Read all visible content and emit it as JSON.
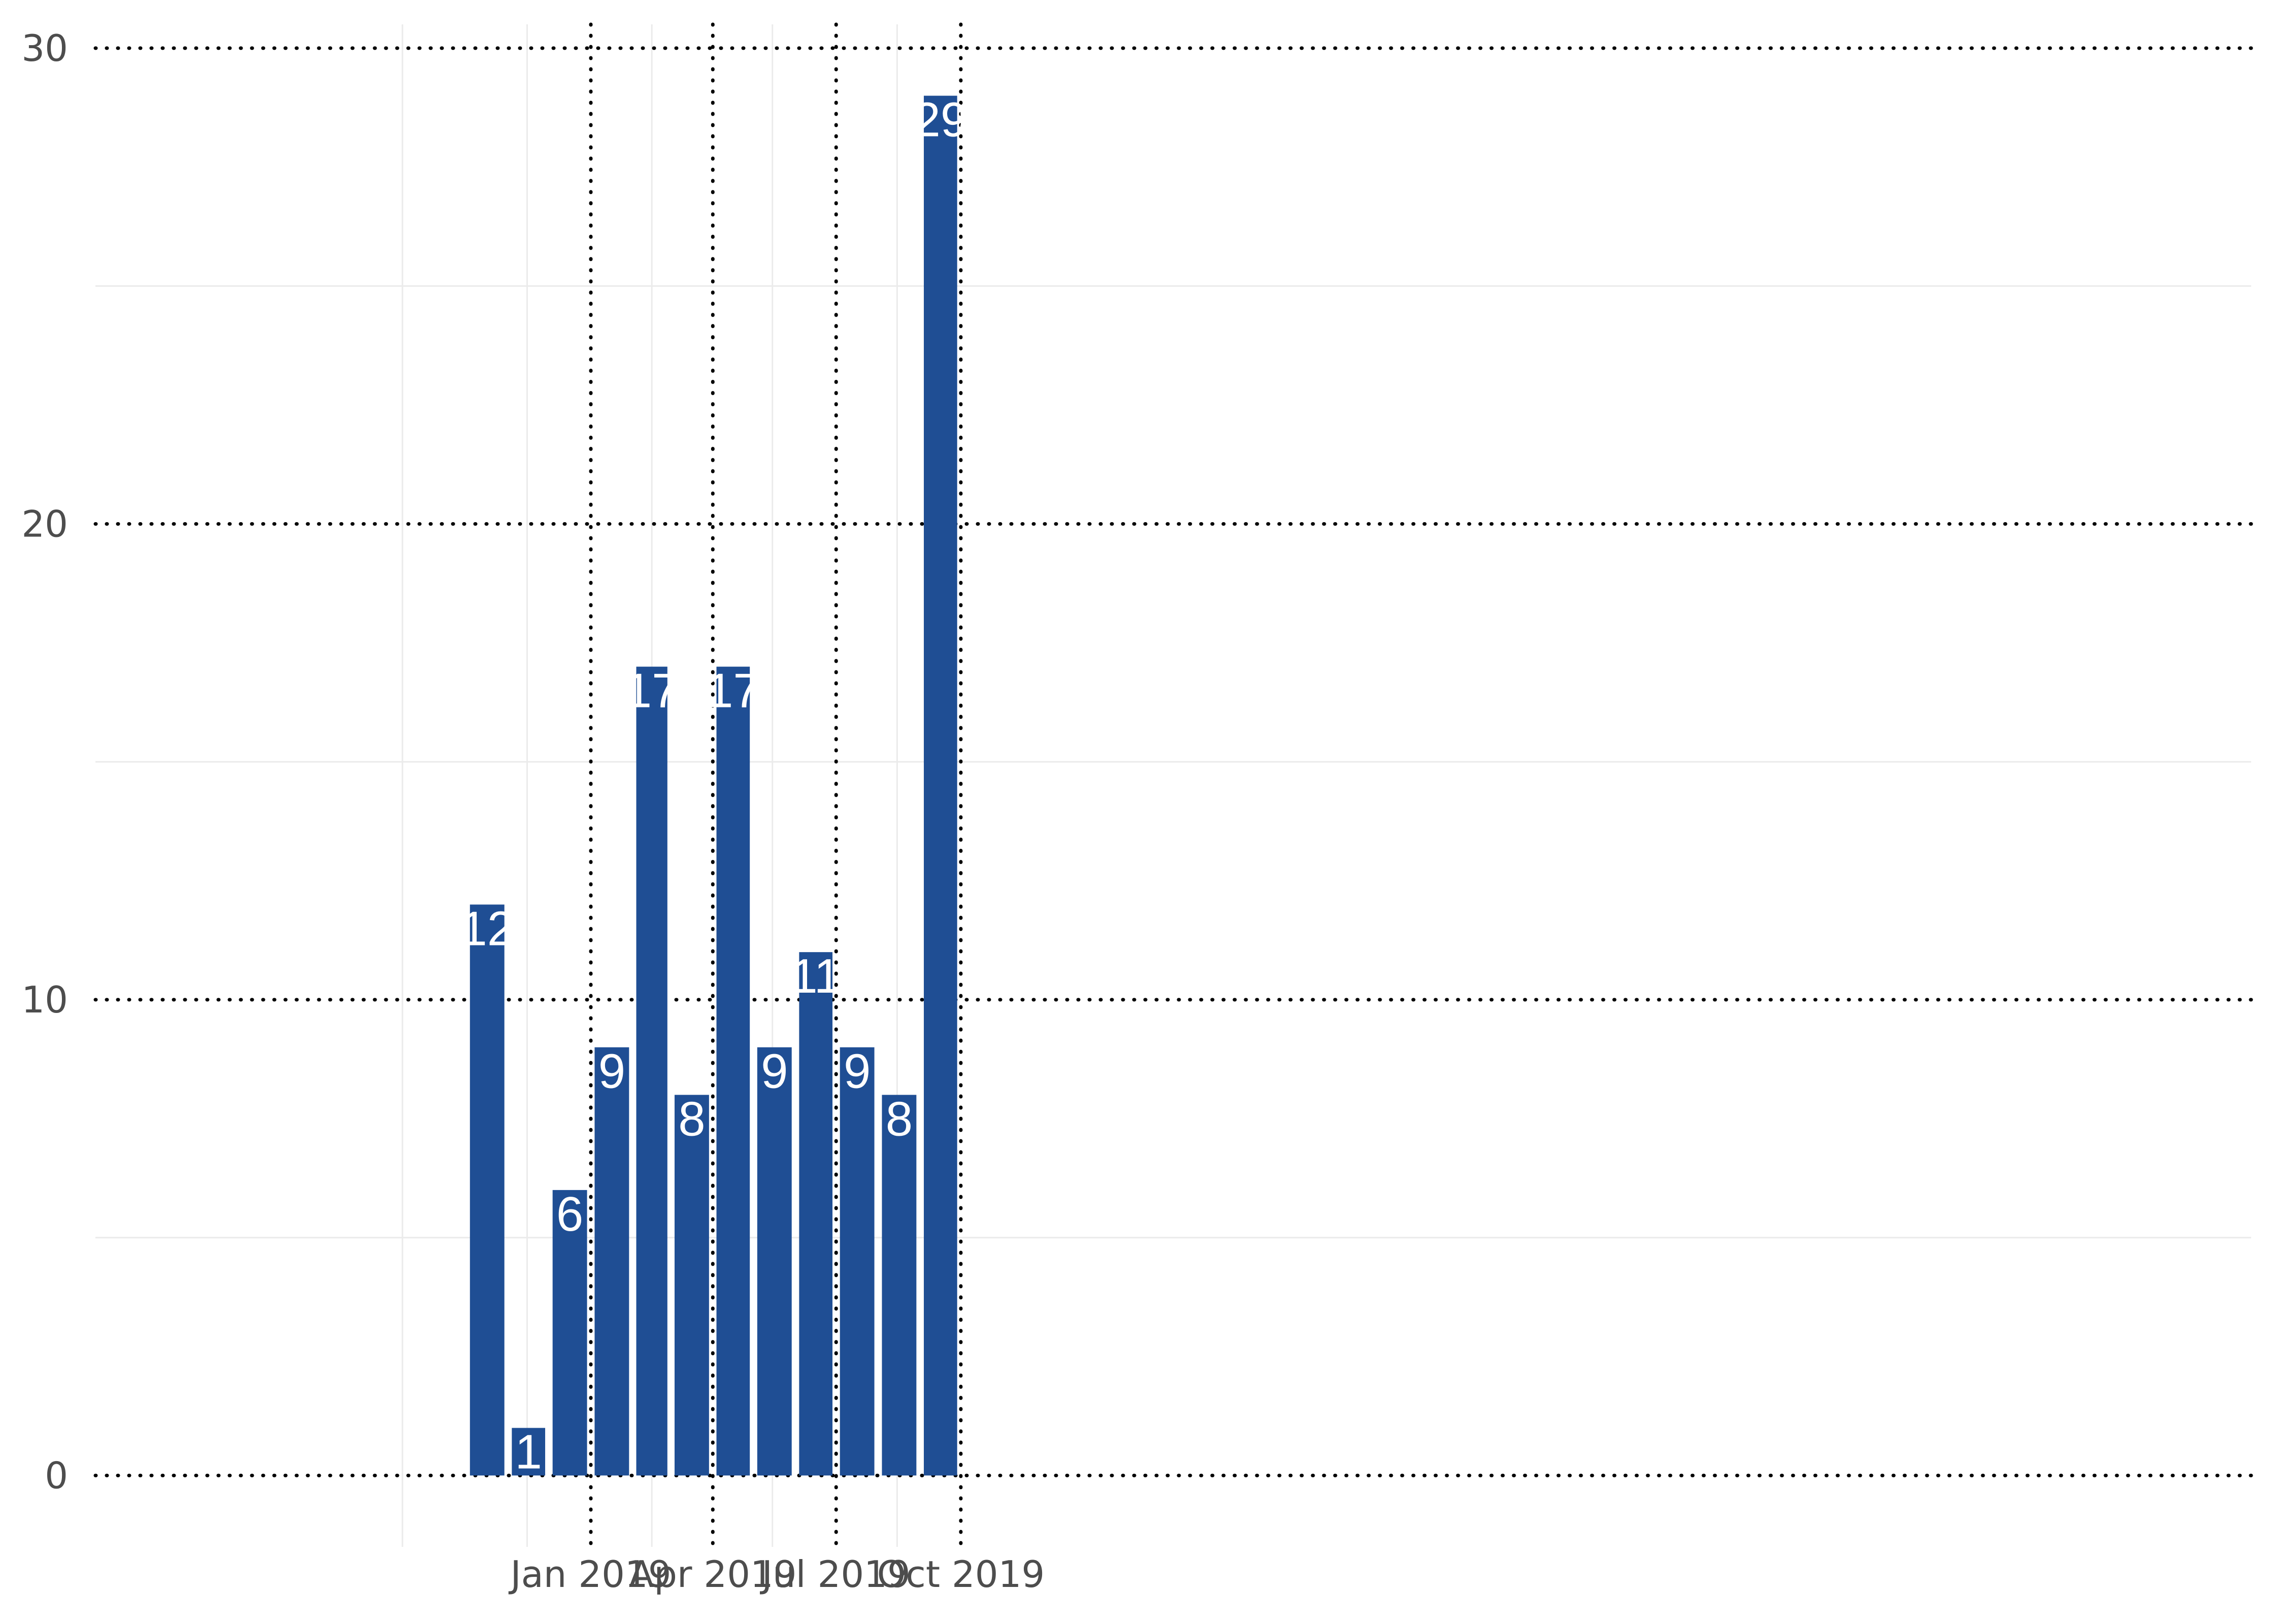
{
  "chart_data": {
    "type": "bar",
    "title": "",
    "xlabel": "",
    "ylabel": "",
    "x_axis_type": "date",
    "categories": [
      "2018-10",
      "2018-11",
      "2018-12",
      "2019-01",
      "2019-02",
      "2019-03",
      "2019-04",
      "2019-05",
      "2019-06",
      "2019-07",
      "2019-08",
      "2019-09",
      "2019-10"
    ],
    "bars": [
      {
        "month": "2018-10",
        "value": 12
      },
      {
        "month": "2018-11",
        "value": 1
      },
      {
        "month": "2018-12",
        "value": 6
      },
      {
        "month": "2019-01",
        "value": 9
      },
      {
        "month": "2019-02",
        "value": 17
      },
      {
        "month": "2019-03",
        "value": 8
      },
      {
        "month": "2019-04",
        "value": 17
      },
      {
        "month": "2019-05",
        "value": 9
      },
      {
        "month": "2019-06",
        "value": 11
      },
      {
        "month": "2019-07",
        "value": 9
      },
      {
        "month": "2019-08",
        "value": 8
      },
      {
        "month": "2019-09",
        "value": 29
      }
    ],
    "ylim": [
      -1.5,
      30.5
    ],
    "y_ticks": [
      0,
      10,
      20,
      30
    ],
    "y_tick_labels": [
      "0",
      "10",
      "20",
      "30"
    ],
    "x_ticks": [
      {
        "date": "2019-01-01",
        "label": "Jan 2019"
      },
      {
        "date": "2019-04-01",
        "label": "Apr 2019"
      },
      {
        "date": "2019-07-01",
        "label": "Jul 2019"
      },
      {
        "date": "2019-10-01",
        "label": "Oct 2019"
      }
    ],
    "x_minor_gridlines": [
      "2018-08-15",
      "2018-11-15",
      "2019-02-15",
      "2019-05-15",
      "2019-08-15"
    ],
    "y_minor_gridlines": [
      5,
      15,
      25
    ],
    "grid": true,
    "legend": "none",
    "data_labels": true,
    "colors": {
      "bar": "#1f4e94",
      "bar_label": "#ffffff",
      "major_grid": "#000000",
      "minor_grid": "#ebebeb",
      "tick_label": "#4d4d4d",
      "background": "#ffffff"
    }
  }
}
